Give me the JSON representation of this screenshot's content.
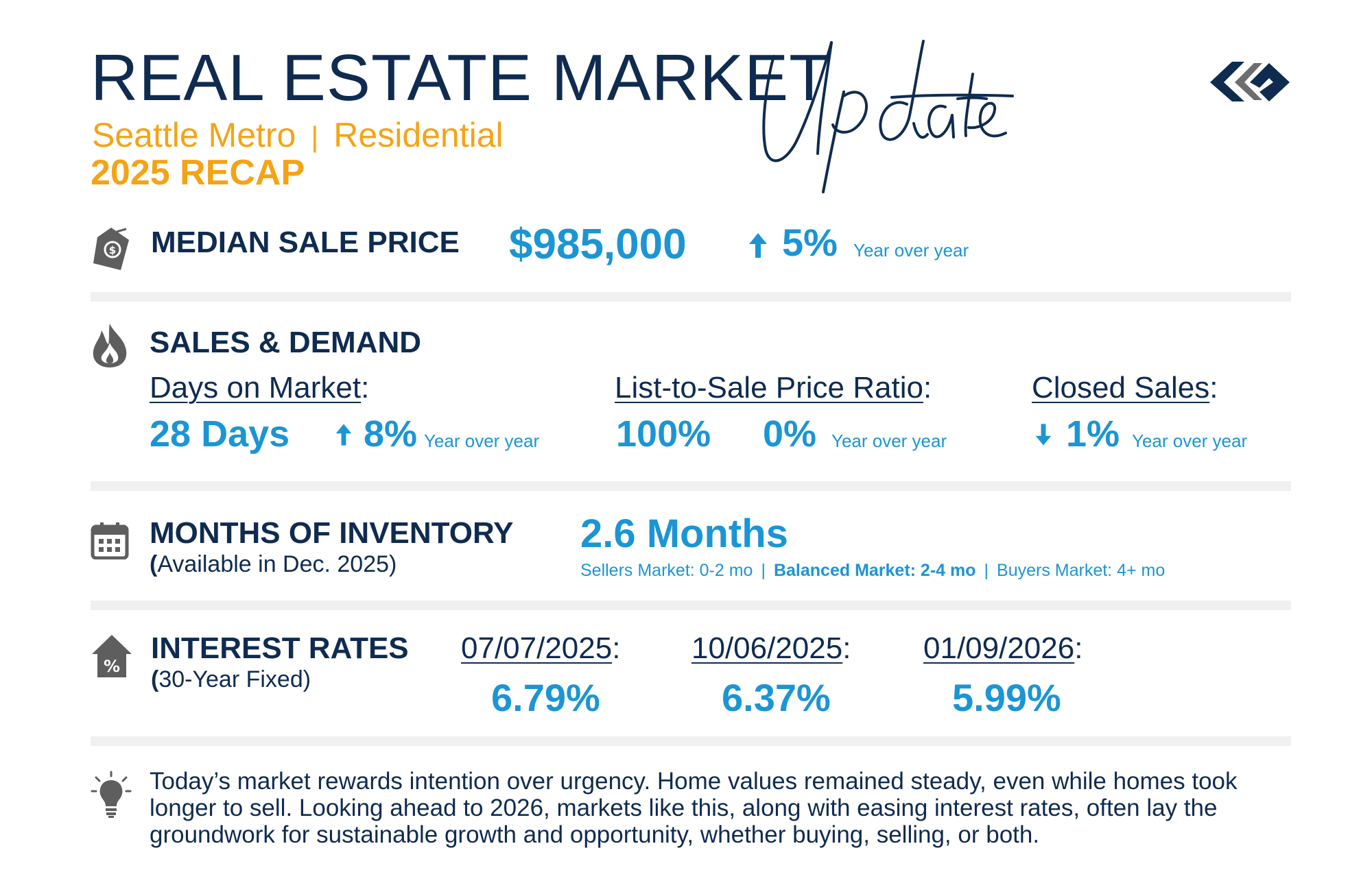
{
  "header": {
    "title": "REAL ESTATE MARKET",
    "script_word": "Update",
    "region": "Seattle Metro",
    "divider": "|",
    "segment": "Residential",
    "recap": "2025 RECAP"
  },
  "colors": {
    "navy": "#0f2b4f",
    "blue": "#1b95d4",
    "orange": "#f5a316",
    "icon_gray": "#5e5e5e",
    "divider_gray": "#f0f0f0"
  },
  "median_sale_price": {
    "icon": "price-tag-icon",
    "heading": "MEDIAN SALE PRICE",
    "value": "$985,000",
    "change_direction": "up",
    "change": "5%",
    "change_label": "Year over year"
  },
  "sales_demand": {
    "icon": "fire-icon",
    "heading": "SALES & DEMAND",
    "days_on_market": {
      "label": "Days on Market",
      "colon": ":",
      "value": "28 Days",
      "change_direction": "up",
      "change": "8%",
      "change_label": "Year over year"
    },
    "list_to_sale": {
      "label": "List-to-Sale Price Ratio",
      "colon": ":",
      "value": "100%",
      "change": "0%",
      "change_label": "Year over year"
    },
    "closed_sales": {
      "label": "Closed Sales",
      "colon": ":",
      "change_direction": "down",
      "change": "1%",
      "change_label": "Year over year"
    }
  },
  "months_of_inventory": {
    "icon": "calendar-icon",
    "heading": "MONTHS OF INVENTORY",
    "note_open": "(",
    "note": "Available in Dec. 2025)",
    "value": "2.6 Months",
    "scale": {
      "sellers": "Sellers Market: 0-2 mo",
      "sep": "|",
      "balanced": "Balanced Market: 2-4 mo",
      "buyers": "Buyers Market: 4+ mo"
    }
  },
  "interest_rates": {
    "icon": "house-percent-icon",
    "heading": "INTEREST RATES",
    "note_open": "(",
    "note": "30-Year Fixed)",
    "colon": ":",
    "rates": [
      {
        "date": "07/07/2025",
        "rate": "6.79%"
      },
      {
        "date": "10/06/2025",
        "rate": "6.37%"
      },
      {
        "date": "01/09/2026",
        "rate": "5.99%"
      }
    ]
  },
  "closing": {
    "icon": "lightbulb-icon",
    "text": "Today’s market rewards intention over urgency. Home values remained steady, even while homes took longer to sell. Looking ahead to 2026, markets like this, along with easing interest rates, often lay the groundwork for sustainable growth and opportunity, whether buying, selling, or both."
  }
}
